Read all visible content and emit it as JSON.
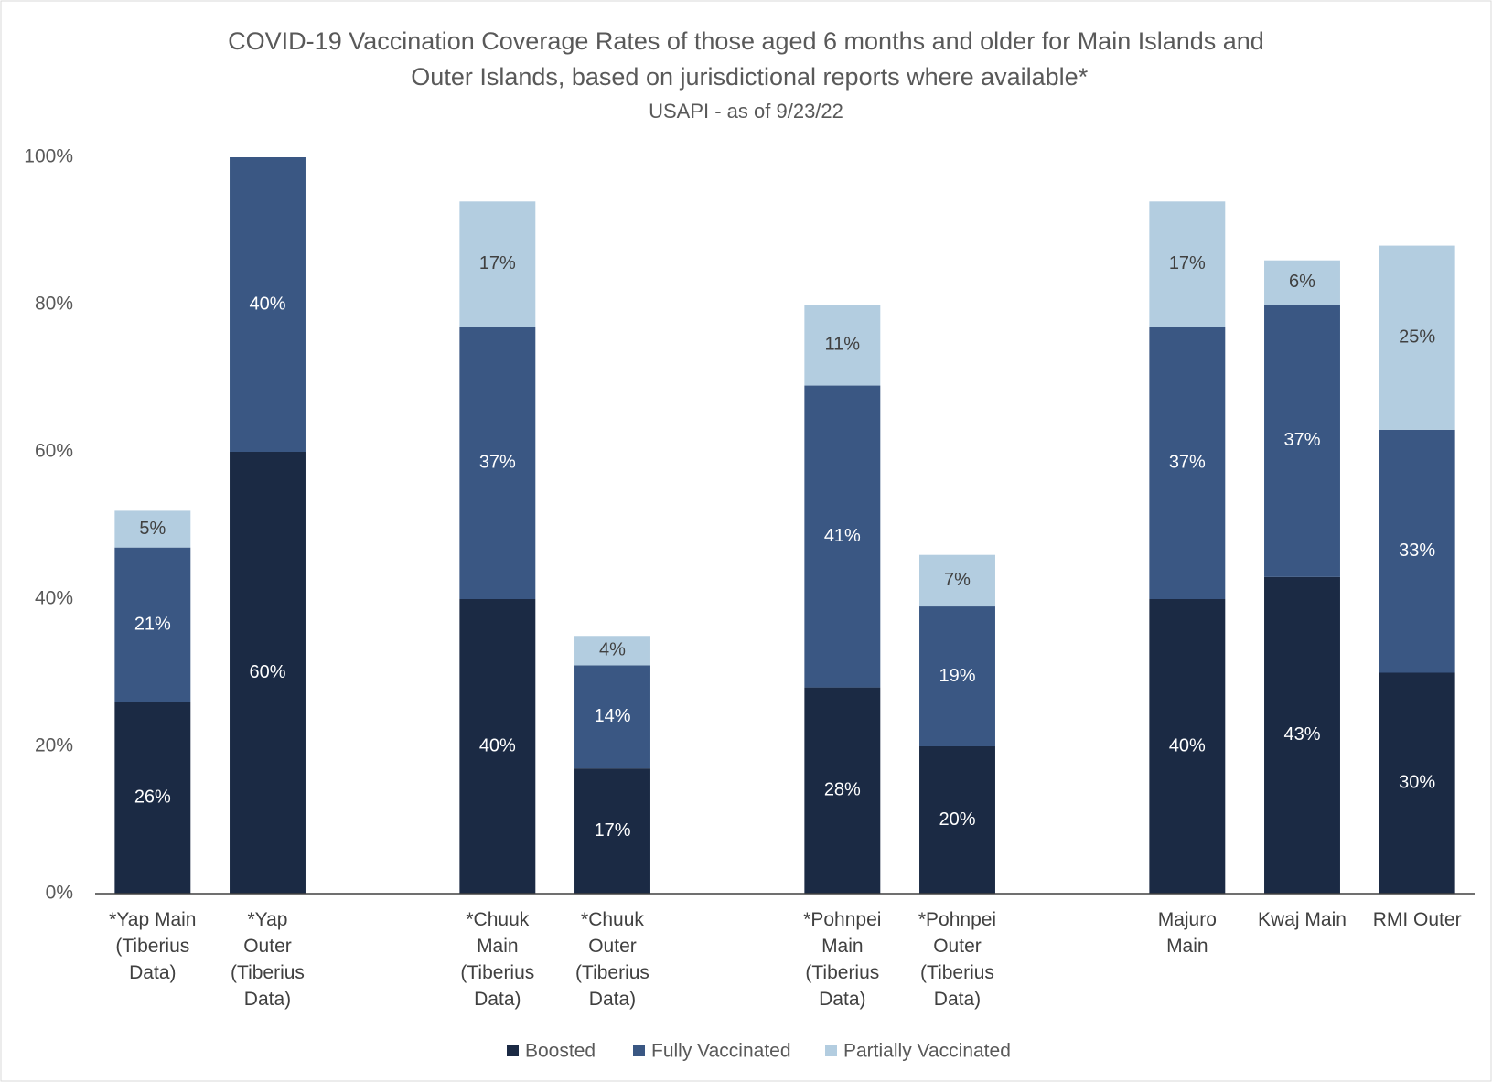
{
  "chart_data": {
    "type": "stacked_bar",
    "title": "COVID-19 Vaccination Coverage Rates of those aged 6 months and older for Main Islands and Outer Islands, based on jurisdictional reports where available*",
    "subtitle": "USAPI - as of 9/23/22",
    "categories": [
      "*Yap Main (Tiberius Data)",
      "*Yap Outer (Tiberius Data)",
      null,
      "*Chuuk Main (Tiberius Data)",
      "*Chuuk Outer (Tiberius Data)",
      null,
      "*Pohnpei Main (Tiberius Data)",
      "*Pohnpei Outer (Tiberius Data)",
      null,
      "Majuro Main",
      "Kwaj Main",
      "RMI Outer"
    ],
    "series": [
      {
        "name": "Boosted",
        "color": "#1b2a44",
        "values": [
          26,
          60,
          null,
          40,
          17,
          null,
          28,
          20,
          null,
          40,
          43,
          30
        ],
        "value_labels": [
          "26%",
          "60%",
          null,
          "40%",
          "17%",
          null,
          "28%",
          "20%",
          null,
          "40%",
          "43%",
          "30%"
        ]
      },
      {
        "name": "Fully Vaccinated",
        "color": "#3a5783",
        "values": [
          21,
          40,
          null,
          37,
          14,
          null,
          41,
          19,
          null,
          37,
          37,
          33
        ],
        "value_labels": [
          "21%",
          "40%",
          null,
          "37%",
          "14%",
          null,
          "41%",
          "19%",
          null,
          "37%",
          "37%",
          "33%"
        ]
      },
      {
        "name": "Partially Vaccinated",
        "color": "#b3cde0",
        "values": [
          5,
          null,
          null,
          17,
          4,
          null,
          11,
          7,
          null,
          17,
          6,
          25
        ],
        "value_labels": [
          "5%",
          null,
          null,
          "17%",
          "4%",
          null,
          "11%",
          "7%",
          null,
          "17%",
          "6%",
          "25%"
        ]
      }
    ],
    "ylim": [
      0,
      100
    ],
    "yticks": [
      {
        "value": 0,
        "label": "0%"
      },
      {
        "value": 20,
        "label": "20%"
      },
      {
        "value": 40,
        "label": "40%"
      },
      {
        "value": 60,
        "label": "60%"
      },
      {
        "value": 80,
        "label": "80%"
      },
      {
        "value": 100,
        "label": "100%"
      }
    ],
    "legend": "bottom"
  }
}
